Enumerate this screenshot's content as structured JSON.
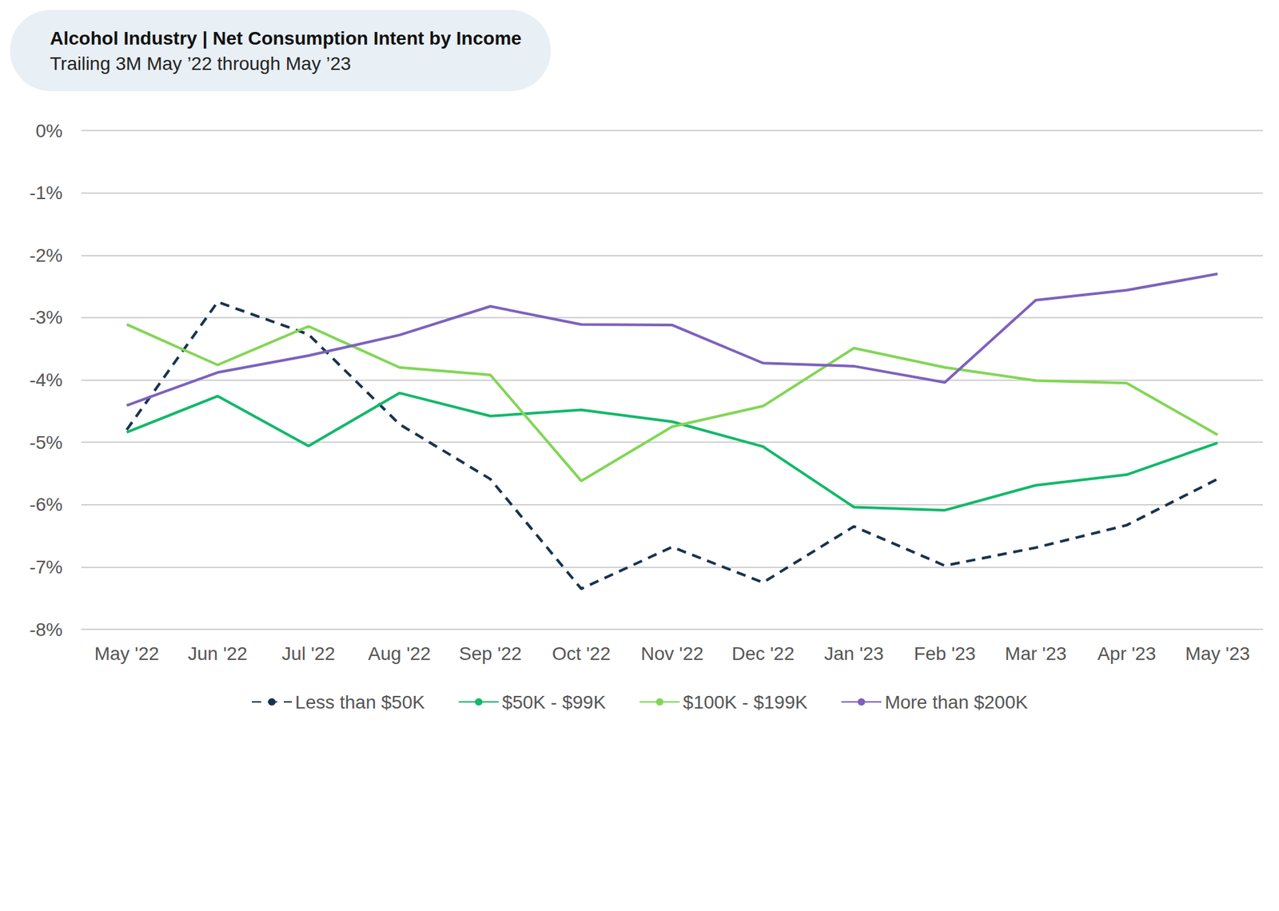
{
  "chart_data": {
    "type": "line",
    "title": "Alcohol Industry | Net Consumption Intent by Income",
    "subtitle": "Trailing 3M May ’22 through May ’23",
    "categories": [
      "May '22",
      "Jun '22",
      "Jul '22",
      "Aug '22",
      "Sep '22",
      "Oct '22",
      "Nov '22",
      "Dec '22",
      "Jan '23",
      "Feb '23",
      "Mar '23",
      "Apr '23",
      "May '23"
    ],
    "series": [
      {
        "name": "Less than $50K",
        "color": "#17324f",
        "line_style": "dashed",
        "values": [
          -4.8,
          -2.75,
          -3.27,
          -4.71,
          -5.59,
          -7.35,
          -6.68,
          -7.25,
          -6.35,
          -6.98,
          -6.69,
          -6.33,
          -5.59
        ]
      },
      {
        "name": "$50K - $99K",
        "color": "#12b86a",
        "line_style": "solid",
        "values": [
          -4.84,
          -4.26,
          -5.06,
          -4.21,
          -4.58,
          -4.48,
          -4.67,
          -5.07,
          -6.04,
          -6.09,
          -5.69,
          -5.52,
          -5.01
        ]
      },
      {
        "name": "$100K - $199K",
        "color": "#82d655",
        "line_style": "solid",
        "values": [
          -3.11,
          -3.76,
          -3.14,
          -3.8,
          -3.92,
          -5.62,
          -4.75,
          -4.42,
          -3.49,
          -3.8,
          -4.01,
          -4.05,
          -4.88
        ]
      },
      {
        "name": "More than $200K",
        "color": "#7c62bd",
        "line_style": "solid",
        "values": [
          -4.41,
          -3.88,
          -3.61,
          -3.28,
          -2.82,
          -3.11,
          -3.12,
          -3.73,
          -3.78,
          -4.04,
          -2.72,
          -2.56,
          -2.3
        ]
      }
    ],
    "ylim": [
      -8,
      0
    ],
    "yticks": [
      {
        "value": -8,
        "label": "-8%"
      },
      {
        "value": -7,
        "label": "-7%"
      },
      {
        "value": -6,
        "label": "-6%"
      },
      {
        "value": -5,
        "label": "-5%"
      },
      {
        "value": -4,
        "label": "-4%"
      },
      {
        "value": -3,
        "label": "-3%"
      },
      {
        "value": -2,
        "label": "-2%"
      },
      {
        "value": -1,
        "label": "-1%"
      },
      {
        "value": 0,
        "label": "0%"
      }
    ],
    "grid": true,
    "legend": "bottom",
    "marker": "none"
  }
}
